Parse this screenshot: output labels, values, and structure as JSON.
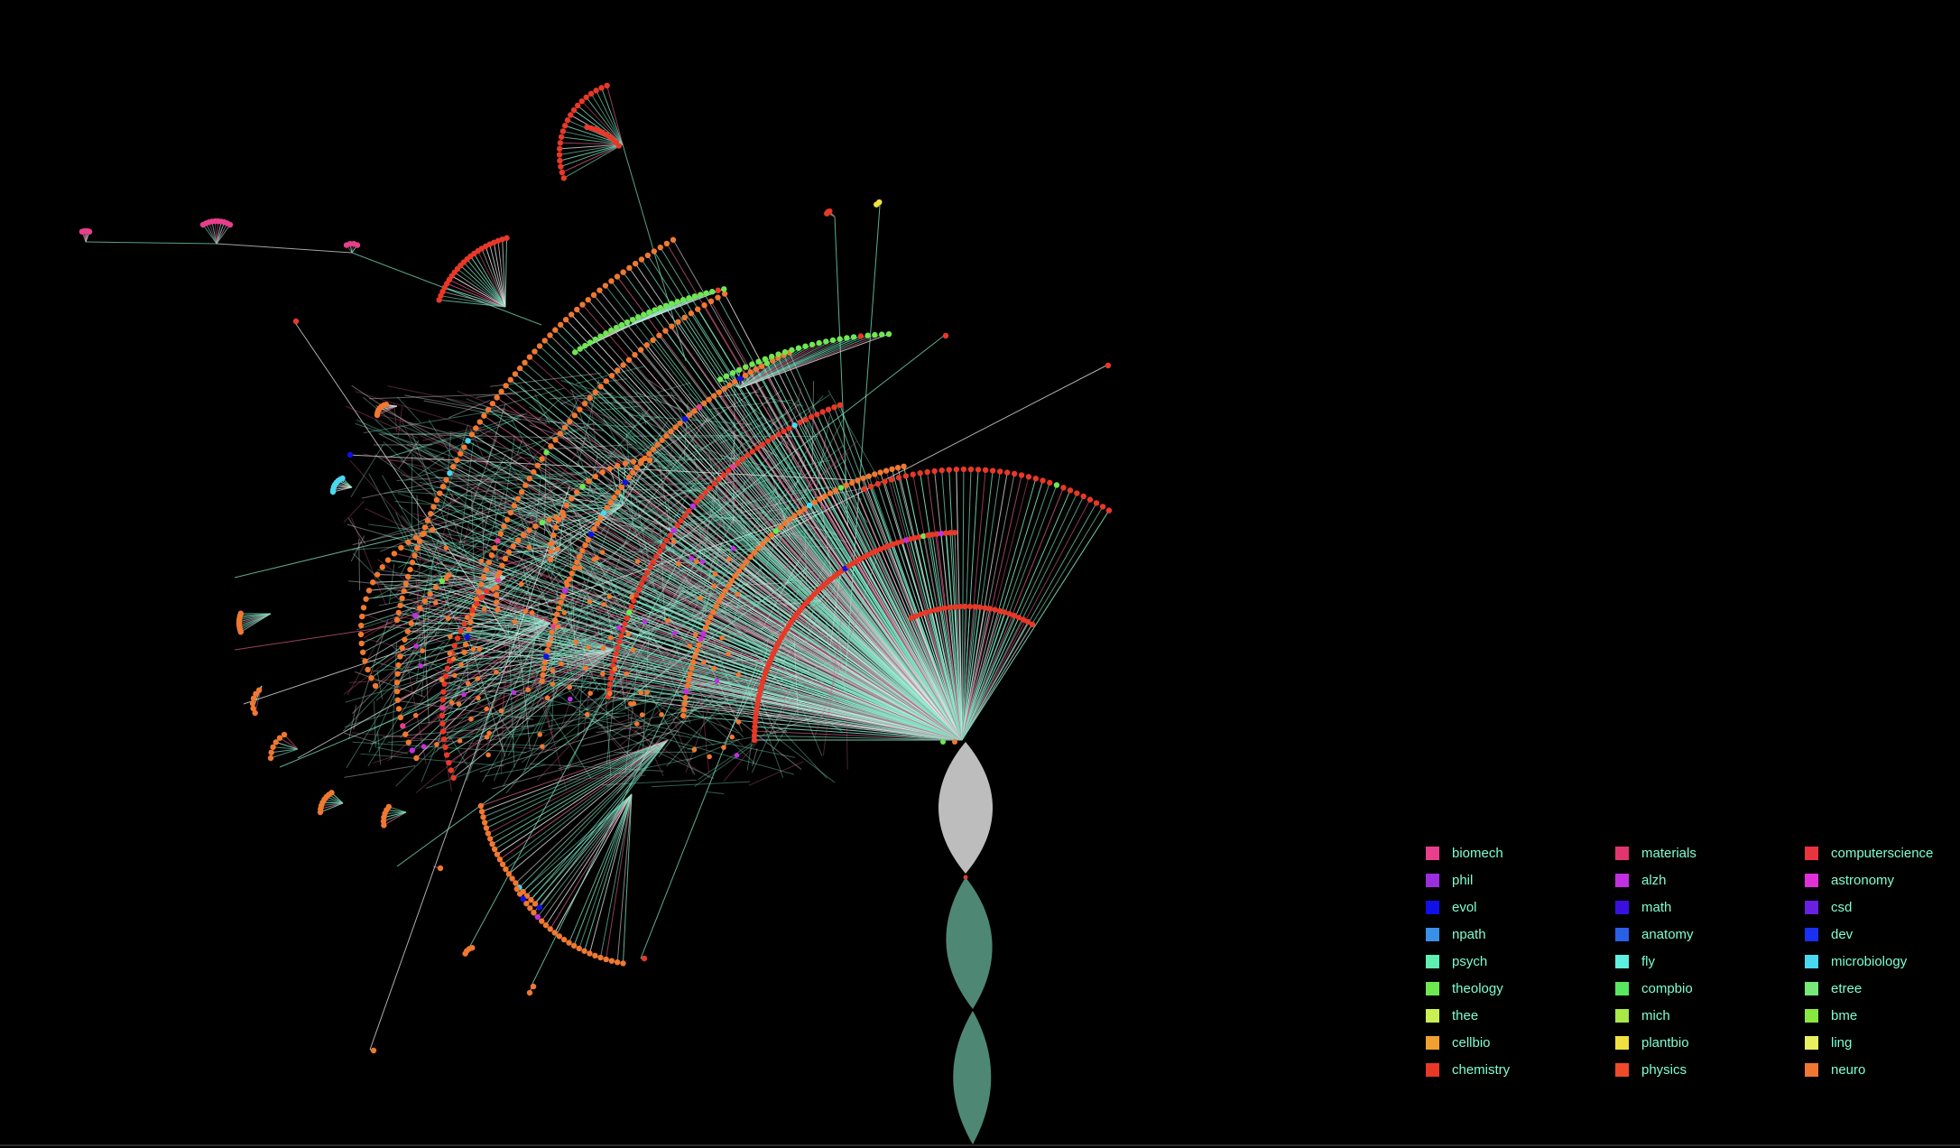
{
  "legend": [
    {
      "label": "biomech",
      "color": "#e83e8c"
    },
    {
      "label": "materials",
      "color": "#e0356e"
    },
    {
      "label": "computerscience",
      "color": "#e8343f"
    },
    {
      "label": "phil",
      "color": "#9b2ee0"
    },
    {
      "label": "alzh",
      "color": "#c030e0"
    },
    {
      "label": "astronomy",
      "color": "#e030d8"
    },
    {
      "label": "evol",
      "color": "#1010e8"
    },
    {
      "label": "math",
      "color": "#3a10e0"
    },
    {
      "label": "csd",
      "color": "#6a20e0"
    },
    {
      "label": "npath",
      "color": "#3a8fe8"
    },
    {
      "label": "anatomy",
      "color": "#2a60e8"
    },
    {
      "label": "dev",
      "color": "#1a30f0"
    },
    {
      "label": "psych",
      "color": "#5ef0b0"
    },
    {
      "label": "fly",
      "color": "#5ef0e0"
    },
    {
      "label": "microbiology",
      "color": "#4ad8f0"
    },
    {
      "label": "theology",
      "color": "#6ee850"
    },
    {
      "label": "compbio",
      "color": "#58e860"
    },
    {
      "label": "etree",
      "color": "#78e878"
    },
    {
      "label": "thee",
      "color": "#c8f050"
    },
    {
      "label": "mich",
      "color": "#a8e848"
    },
    {
      "label": "bme",
      "color": "#88e840"
    },
    {
      "label": "cellbio",
      "color": "#f0a030"
    },
    {
      "label": "plantbio",
      "color": "#f0e040"
    },
    {
      "label": "ling",
      "color": "#e8f060"
    },
    {
      "label": "chemistry",
      "color": "#e83828"
    },
    {
      "label": "physics",
      "color": "#f04a28"
    },
    {
      "label": "neuro",
      "color": "#f07830"
    }
  ],
  "theme": {
    "background": "#000000",
    "legend_text": "#7fffd4",
    "edge_main": "#7fe6c6",
    "edge_alt": "#c8587e",
    "edge_light": "#e8e8e8",
    "trunk_grey": "#bdbdbd",
    "trunk_green": "#4e8874",
    "node_orange": "#f07830",
    "node_red": "#e83828",
    "node_green": "#6ee850"
  }
}
